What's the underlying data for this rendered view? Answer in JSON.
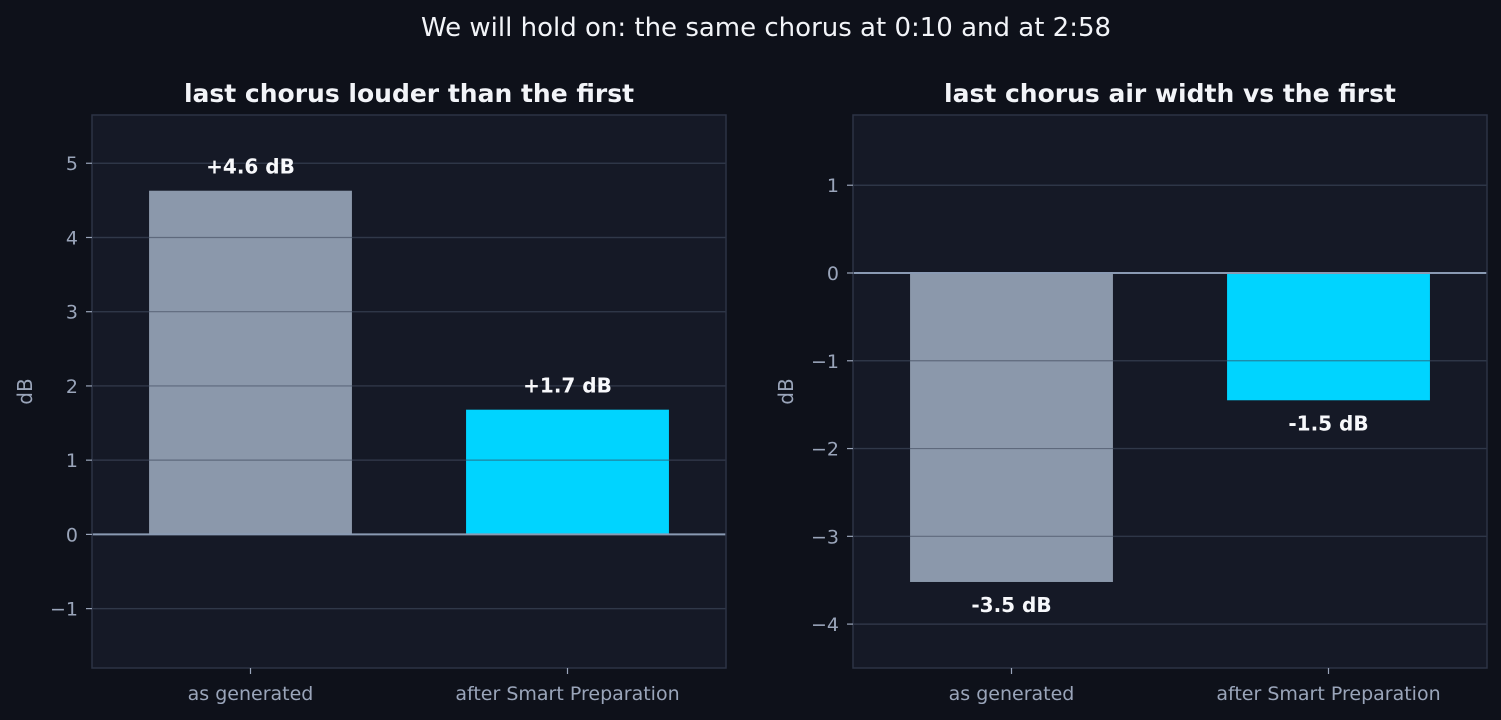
{
  "suptitle": "We will hold on: the same chorus at 0:10 and at 2:58",
  "colors": {
    "background": "#0e111a",
    "plot_background": "#151926",
    "grid": "#242a3a",
    "zero_line": "#8a9ab3",
    "as_generated": "#8b98ab",
    "after_smart_preparation": "#00d4ff",
    "text": "#f2f4f8",
    "muted_text": "#9aa5ba"
  },
  "chart_data": [
    {
      "type": "bar",
      "title": "last chorus louder than the first",
      "categories": [
        "as generated",
        "after Smart Preparation"
      ],
      "values": [
        4.63,
        1.68
      ],
      "value_labels": [
        "+4.6 dB",
        "+1.7 dB"
      ],
      "ylabel": "dB",
      "xlabel": "",
      "ylim": [
        -1.8,
        5.65
      ],
      "yticks": [
        -1,
        0,
        1,
        2,
        3,
        4,
        5
      ],
      "ytick_labels": [
        "−1",
        "0",
        "1",
        "2",
        "3",
        "4",
        "5"
      ],
      "grid": true
    },
    {
      "type": "bar",
      "title": "last chorus air width vs the first",
      "categories": [
        "as generated",
        "after Smart Preparation"
      ],
      "values": [
        -3.52,
        -1.45
      ],
      "value_labels": [
        "-3.5 dB",
        "-1.5 dB"
      ],
      "ylabel": "dB",
      "xlabel": "",
      "ylim": [
        -4.5,
        1.8
      ],
      "yticks": [
        -4,
        -3,
        -2,
        -1,
        0,
        1
      ],
      "ytick_labels": [
        "−4",
        "−3",
        "−2",
        "−1",
        "0",
        "1"
      ],
      "grid": true
    }
  ]
}
